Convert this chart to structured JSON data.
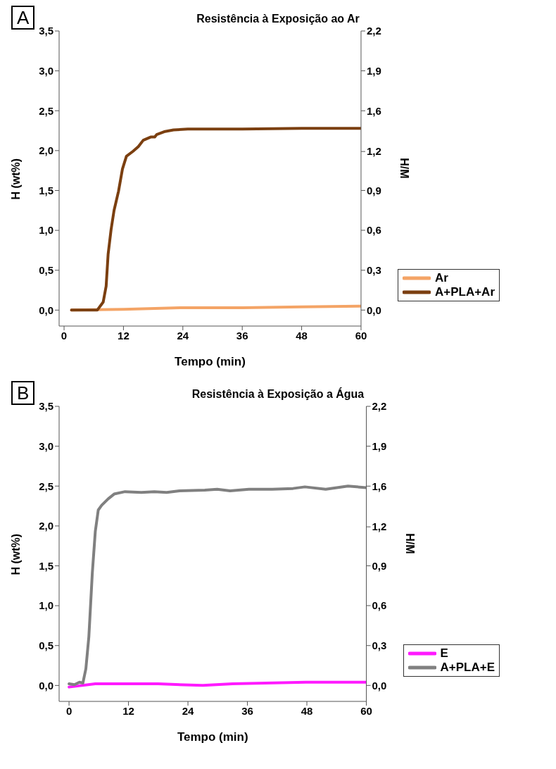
{
  "chart_data": [
    {
      "type": "line",
      "title": "Resistência à Exposição ao Ar",
      "annotations": [
        "A"
      ],
      "xlabel": "Tempo (min)",
      "ylabel": "H (wt%)",
      "y2label": "H/M",
      "xlim": [
        -1,
        60
      ],
      "xticks": [
        0,
        12,
        24,
        36,
        48,
        60
      ],
      "ylim": [
        -0.2,
        3.5
      ],
      "yticks": [
        {
          "value": 0,
          "label": "0,0"
        },
        {
          "value": 0.5,
          "label": "0,5"
        },
        {
          "value": 1,
          "label": "1,0"
        },
        {
          "value": 1.5,
          "label": "1,5"
        },
        {
          "value": 2,
          "label": "2,0"
        },
        {
          "value": 2.5,
          "label": "2,5"
        },
        {
          "value": 3,
          "label": "3,0"
        },
        {
          "value": 3.5,
          "label": "3,5"
        }
      ],
      "y2lim": [
        -0.126,
        2.2
      ],
      "y2ticks": [
        {
          "value": 0,
          "label": "0,0"
        },
        {
          "value": 0.314,
          "label": "0,3"
        },
        {
          "value": 0.629,
          "label": "0,6"
        },
        {
          "value": 0.943,
          "label": "0,9"
        },
        {
          "value": 1.25,
          "label": "1,2"
        },
        {
          "value": 1.571,
          "label": "1,6"
        },
        {
          "value": 1.886,
          "label": "1,9"
        },
        {
          "value": 2.2,
          "label": "2,2"
        }
      ],
      "legend": "bottom right",
      "marker": "none",
      "line_style": "solid",
      "series": [
        {
          "name": "Ar",
          "color": "#f4a466",
          "x": [
            1.5,
            12,
            24,
            36,
            48,
            60
          ],
          "values": [
            0,
            0.01,
            0.03,
            0.03,
            0.04,
            0.05
          ]
        },
        {
          "name": "A+PLA+Ar",
          "color": "#7b3f10",
          "x": [
            1.5,
            6.7,
            7.9,
            8.5,
            8.9,
            9.5,
            10.1,
            11,
            11.8,
            12.6,
            13.9,
            15,
            16,
            17.5,
            18.3,
            18.7,
            20.4,
            22.1,
            25,
            36,
            48,
            60
          ],
          "values": [
            0,
            0,
            0.1,
            0.3,
            0.7,
            1.01,
            1.25,
            1.49,
            1.77,
            1.93,
            1.99,
            2.05,
            2.13,
            2.17,
            2.17,
            2.2,
            2.24,
            2.26,
            2.27,
            2.27,
            2.28,
            2.28
          ]
        }
      ]
    },
    {
      "type": "line",
      "title": "Resistência à Exposição a Água",
      "annotations": [
        "B"
      ],
      "xlabel": "Tempo (min)",
      "ylabel": "H (wt%)",
      "y2label": "H/M",
      "xlim": [
        -2,
        60
      ],
      "xticks": [
        0,
        12,
        24,
        36,
        48,
        60
      ],
      "ylim": [
        -0.2,
        3.5
      ],
      "yticks": [
        {
          "value": 0,
          "label": "0,0"
        },
        {
          "value": 0.5,
          "label": "0,5"
        },
        {
          "value": 1,
          "label": "1,0"
        },
        {
          "value": 1.5,
          "label": "1,5"
        },
        {
          "value": 2,
          "label": "2,0"
        },
        {
          "value": 2.5,
          "label": "2,5"
        },
        {
          "value": 3,
          "label": "3,0"
        },
        {
          "value": 3.5,
          "label": "3,5"
        }
      ],
      "y2lim": [
        -0.126,
        2.2
      ],
      "y2ticks": [
        {
          "value": 0,
          "label": "0,0"
        },
        {
          "value": 0.314,
          "label": "0,3"
        },
        {
          "value": 0.629,
          "label": "0,6"
        },
        {
          "value": 0.943,
          "label": "0,9"
        },
        {
          "value": 1.25,
          "label": "1,2"
        },
        {
          "value": 1.571,
          "label": "1,6"
        },
        {
          "value": 1.886,
          "label": "1,9"
        },
        {
          "value": 2.2,
          "label": "2,2"
        }
      ],
      "legend": "bottom right",
      "marker": "none",
      "line_style": "solid",
      "series": [
        {
          "name": "E",
          "color": "#ff1aff",
          "x": [
            0,
            5.3,
            18,
            27,
            33,
            47.8,
            60
          ],
          "values": [
            -0.02,
            0.02,
            0.02,
            0,
            0.02,
            0.04,
            0.04
          ]
        },
        {
          "name": "A+PLA+E",
          "color": "#808080",
          "x": [
            0,
            1.1,
            2.1,
            2.8,
            3.4,
            4,
            4.7,
            5.3,
            5.9,
            6.6,
            7.9,
            9.1,
            11.3,
            14.6,
            17.2,
            19.7,
            22.3,
            27.4,
            29.9,
            32.5,
            36.3,
            41,
            45.2,
            47.6,
            51.8,
            56.3,
            60
          ],
          "values": [
            0.02,
            0.01,
            0.04,
            0.03,
            0.21,
            0.61,
            1.41,
            1.93,
            2.2,
            2.26,
            2.34,
            2.4,
            2.43,
            2.42,
            2.43,
            2.42,
            2.44,
            2.45,
            2.46,
            2.44,
            2.46,
            2.46,
            2.47,
            2.49,
            2.46,
            2.5,
            2.48
          ]
        }
      ]
    }
  ]
}
